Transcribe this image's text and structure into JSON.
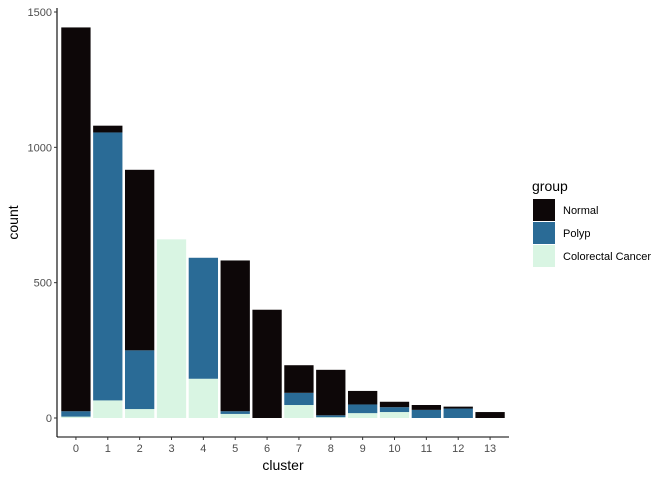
{
  "chart_data": {
    "type": "bar",
    "stacked": true,
    "xlabel": "cluster",
    "ylabel": "count",
    "categories": [
      "0",
      "1",
      "2",
      "3",
      "4",
      "5",
      "6",
      "7",
      "8",
      "9",
      "10",
      "11",
      "12",
      "13"
    ],
    "ylim": [
      0,
      1500
    ],
    "yticks": [
      0,
      500,
      1000,
      1500
    ],
    "grid": false,
    "legend": {
      "title": "group",
      "placement": "right"
    },
    "series": [
      {
        "name": "Colorectal Cancer",
        "color": "#d9f5e3",
        "values": [
          5,
          65,
          33,
          660,
          145,
          15,
          0,
          48,
          3,
          18,
          22,
          0,
          0,
          0
        ]
      },
      {
        "name": "Polyp",
        "color": "#2a6b96",
        "values": [
          20,
          990,
          217,
          0,
          447,
          10,
          0,
          45,
          7,
          32,
          18,
          30,
          35,
          0
        ]
      },
      {
        "name": "Normal",
        "color": "#0d0708",
        "values": [
          1418,
          25,
          667,
          0,
          0,
          557,
          400,
          102,
          168,
          50,
          20,
          18,
          7,
          22
        ]
      }
    ],
    "legend_order": [
      "Normal",
      "Polyp",
      "Colorectal Cancer"
    ]
  }
}
